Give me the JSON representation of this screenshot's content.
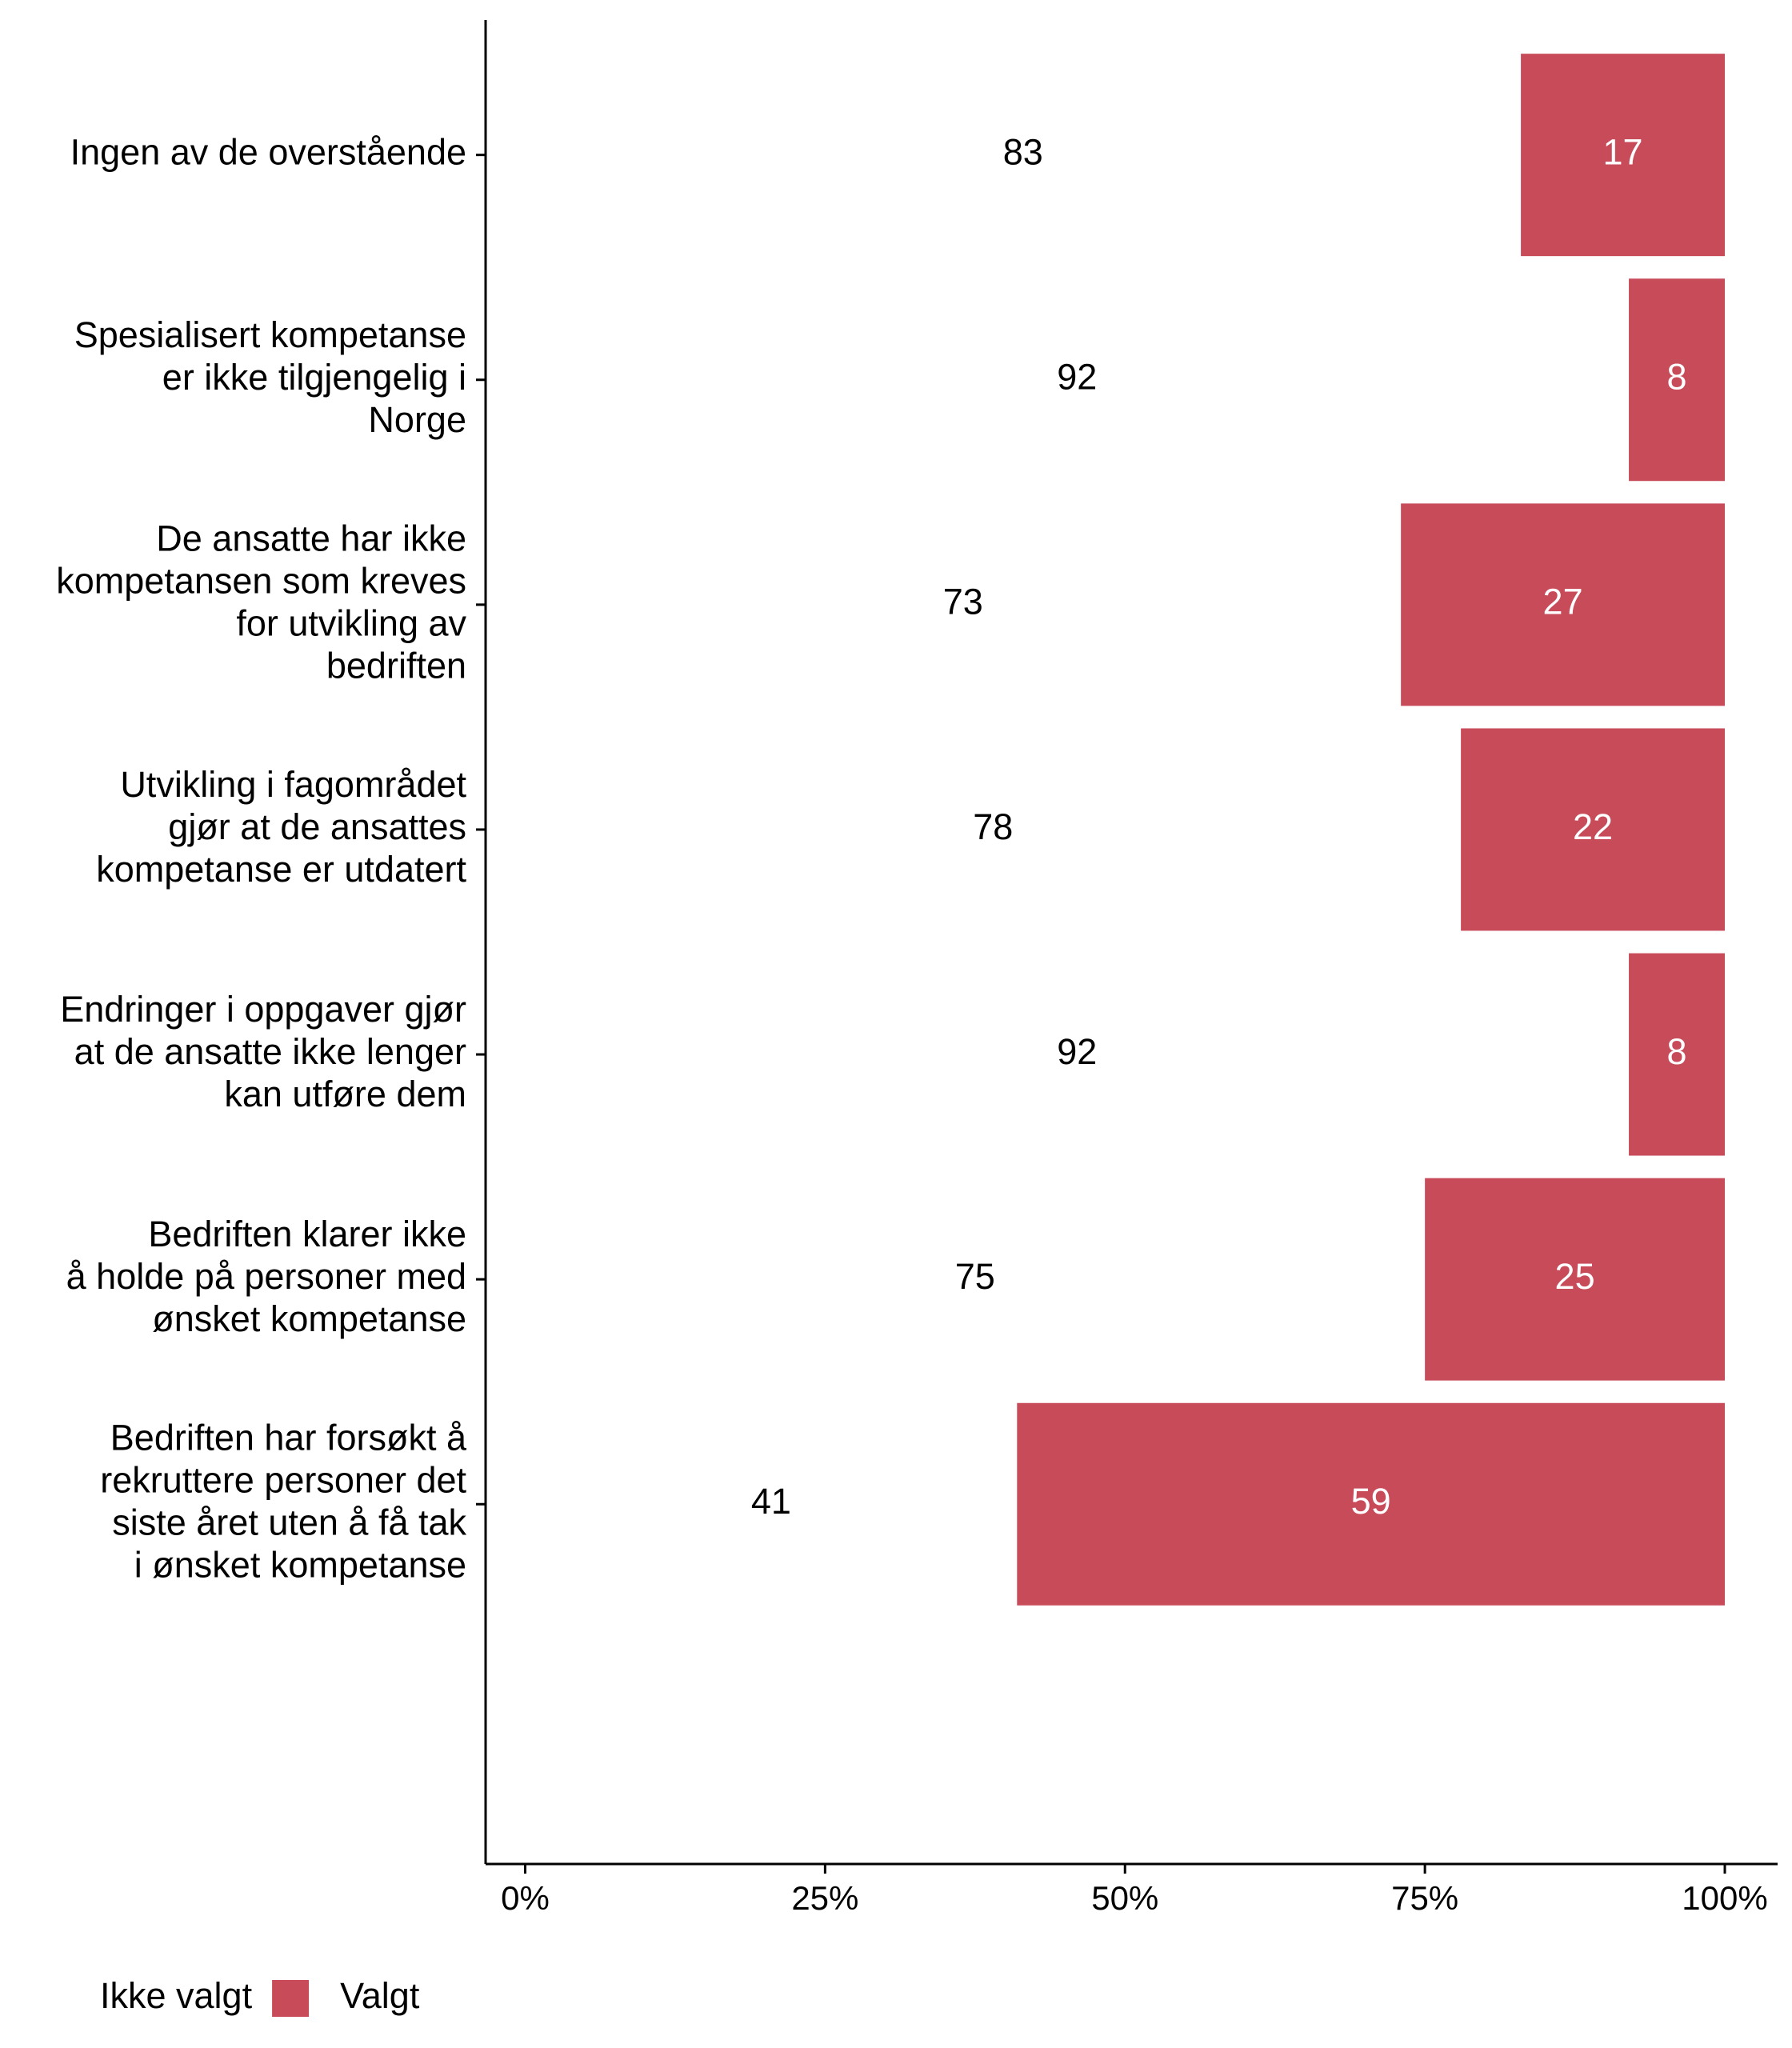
{
  "chart_data": {
    "type": "stacked-barh",
    "categories": [
      "Ingen av de overstående",
      "Spesialisert kompetanse\ner ikke tilgjengelig i\nNorge",
      "De ansatte har ikke\nkompetansen som kreves\nfor utvikling av\nbedriften",
      "Utvikling i fagområdet\ngjør at de ansattes\nkompetanse er utdatert",
      "Endringer i oppgaver gjør\nat de ansatte ikke lenger\nkan utføre dem",
      "Bedriften klarer ikke\nå holde på personer med\nønsket kompetanse",
      "Bedriften har forsøkt å\nrekruttere personer det\nsiste året uten å få tak\ni ønsket kompetanse"
    ],
    "series": [
      {
        "name": "Ikke valgt",
        "color": "#ffffff",
        "label_color": "#000000",
        "values": [
          83,
          92,
          73,
          78,
          92,
          75,
          41
        ]
      },
      {
        "name": "Valgt",
        "color": "#c84b5a",
        "label_color": "#ffffff",
        "values": [
          17,
          8,
          27,
          22,
          8,
          25,
          59
        ]
      }
    ],
    "xlim": [
      -3.3,
      104.4
    ],
    "xticks": [
      {
        "value": 0,
        "label": "0%"
      },
      {
        "value": 25,
        "label": "25%"
      },
      {
        "value": 50,
        "label": "50%"
      },
      {
        "value": 75,
        "label": "75%"
      },
      {
        "value": 100,
        "label": "100%"
      }
    ],
    "grid": false
  }
}
